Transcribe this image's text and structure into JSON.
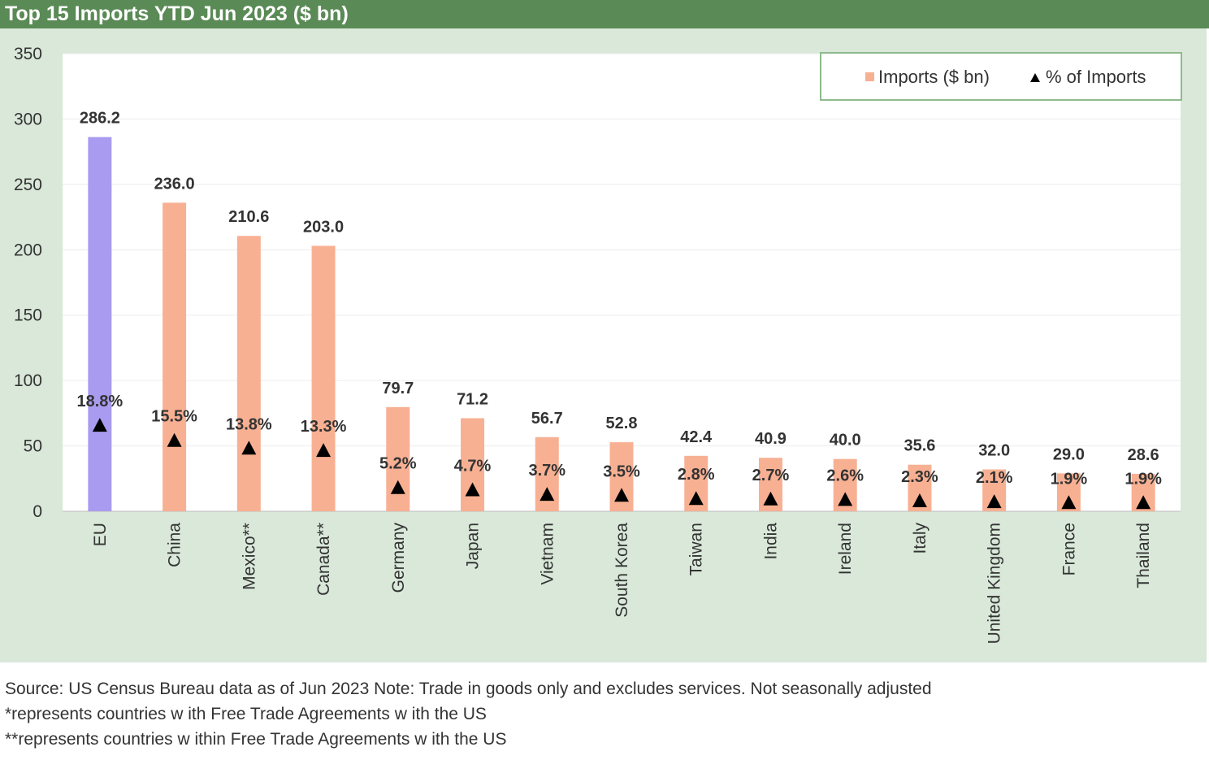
{
  "title": "Top 15 Imports YTD Jun 2023 ($ bn)",
  "colors": {
    "title_bar": "#5a8a55",
    "chart_bg": "#d9e8d9",
    "plot_bg": "#ffffff",
    "bar": "#f8b093",
    "bar_highlight": "#a99bef",
    "marker": "#000000"
  },
  "footer": {
    "line1": "Source: US Census Bureau data as of Jun 2023 Note: Trade in goods only and excludes services. Not seasonally adjusted",
    "line2": "*represents countries w ith Free Trade Agreements w ith the US",
    "line3": "**represents countries w ithin Free Trade Agreements w ith the US"
  },
  "chart_data": {
    "type": "bar",
    "categories": [
      "EU",
      "China",
      "Mexico**",
      "Canada**",
      "Germany",
      "Japan",
      "Vietnam",
      "South Korea",
      "Taiwan",
      "India",
      "Ireland",
      "Italy",
      "United Kingdom",
      "France",
      "Thailand"
    ],
    "series": [
      {
        "name": "Imports ($ bn)",
        "type": "bar",
        "values": [
          286.2,
          236.0,
          210.6,
          203.0,
          79.7,
          71.2,
          56.7,
          52.8,
          42.4,
          40.9,
          40.0,
          35.6,
          32.0,
          29.0,
          28.6
        ],
        "labels": [
          "286.2",
          "236.0",
          "210.6",
          "203.0",
          "79.7",
          "71.2",
          "56.7",
          "52.8",
          "42.4",
          "40.9",
          "40.0",
          "35.6",
          "32.0",
          "29.0",
          "28.6"
        ],
        "highlight_index": 0
      },
      {
        "name": "% of Imports",
        "type": "scatter",
        "marker": "triangle",
        "values": [
          18.8,
          15.5,
          13.8,
          13.3,
          5.2,
          4.7,
          3.7,
          3.5,
          2.8,
          2.7,
          2.6,
          2.3,
          2.1,
          1.9,
          1.9
        ],
        "labels": [
          "18.8%",
          "15.5%",
          "13.8%",
          "13.3%",
          "5.2%",
          "4.7%",
          "3.7%",
          "3.5%",
          "2.8%",
          "2.7%",
          "2.6%",
          "2.3%",
          "2.1%",
          "1.9%",
          "1.9%"
        ],
        "plotted_on_primary_axis_scale": 3.5
      }
    ],
    "ylim": [
      0,
      350
    ],
    "yticks": [
      0,
      50,
      100,
      150,
      200,
      250,
      300,
      350
    ],
    "ytick_labels": [
      "0",
      "50",
      "100",
      "150",
      "200",
      "250",
      "300",
      "350"
    ],
    "grid": true,
    "legend_position": "top-right"
  }
}
